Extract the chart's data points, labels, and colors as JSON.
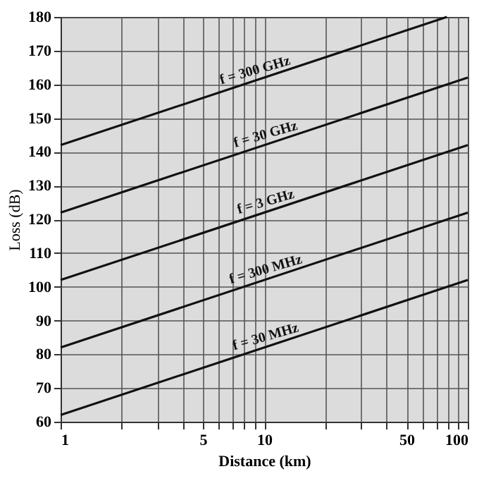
{
  "chart_data": {
    "type": "line",
    "xlabel": "Distance (km)",
    "ylabel": "Loss (dB)",
    "log": "x",
    "grid": true,
    "legend": false,
    "marker": "none",
    "line_style": "solid",
    "xlim": [
      1,
      100
    ],
    "ylim": [
      60,
      180
    ],
    "xticks": [
      1,
      {
        "value": 2,
        "label": null
      },
      {
        "value": 3,
        "label": null
      },
      {
        "value": 4,
        "label": null
      },
      5,
      {
        "value": 6,
        "label": null
      },
      {
        "value": 7,
        "label": null
      },
      {
        "value": 8,
        "label": null
      },
      {
        "value": 9,
        "label": null
      },
      10,
      {
        "value": 20,
        "label": null
      },
      {
        "value": 30,
        "label": null
      },
      {
        "value": 40,
        "label": null
      },
      50,
      {
        "value": 60,
        "label": null
      },
      {
        "value": 70,
        "label": null
      },
      {
        "value": 80,
        "label": null
      },
      {
        "value": 90,
        "label": null
      },
      100
    ],
    "yticks": [
      60,
      70,
      80,
      90,
      100,
      110,
      120,
      130,
      140,
      150,
      160,
      170,
      180
    ],
    "series": [
      {
        "name": "f = 300 GHz",
        "color": "#111111",
        "x": [
          1,
          79
        ],
        "values": [
          142,
          180
        ]
      },
      {
        "name": "f = 30 GHz",
        "color": "#111111",
        "x": [
          1,
          100
        ],
        "values": [
          122,
          162
        ]
      },
      {
        "name": "f = 3 GHz",
        "color": "#111111",
        "x": [
          1,
          100
        ],
        "values": [
          102,
          142
        ]
      },
      {
        "name": "f = 300 MHz",
        "color": "#111111",
        "x": [
          1,
          100
        ],
        "values": [
          82,
          122
        ]
      },
      {
        "name": "f = 30 MHz",
        "color": "#111111",
        "x": [
          1,
          100
        ],
        "values": [
          62,
          102
        ]
      }
    ]
  }
}
